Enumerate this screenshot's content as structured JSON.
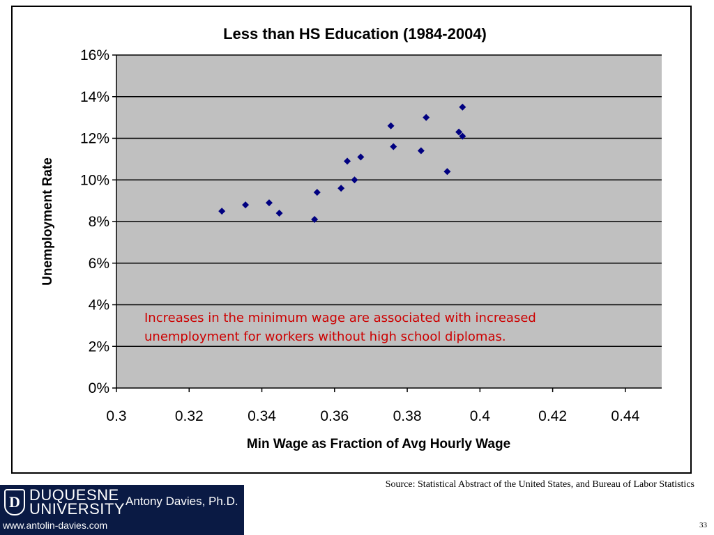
{
  "chart_data": {
    "type": "scatter",
    "title": "Less than HS Education (1984-2004)",
    "xlabel": "Min Wage as Fraction of Avg Hourly Wage",
    "ylabel": "Unemployment Rate",
    "xlim": [
      0.3,
      0.45
    ],
    "ylim": [
      0,
      16
    ],
    "x_ticks": [
      "0.3",
      "0.32",
      "0.34",
      "0.36",
      "0.38",
      "0.4",
      "0.42",
      "0.44"
    ],
    "x_tick_values": [
      0.3,
      0.32,
      0.34,
      0.36,
      0.38,
      0.4,
      0.42,
      0.44
    ],
    "y_ticks": [
      "0%",
      "2%",
      "4%",
      "6%",
      "8%",
      "10%",
      "12%",
      "14%",
      "16%"
    ],
    "y_tick_values": [
      0,
      2,
      4,
      6,
      8,
      10,
      12,
      14,
      16
    ],
    "grid": "horizontal",
    "plot_background": "#c0c0c0",
    "marker_color": "#000080",
    "marker": "diamond",
    "points": [
      {
        "x": 0.329,
        "y": 8.5
      },
      {
        "x": 0.3355,
        "y": 8.8
      },
      {
        "x": 0.342,
        "y": 8.9
      },
      {
        "x": 0.3448,
        "y": 8.4
      },
      {
        "x": 0.3545,
        "y": 8.1
      },
      {
        "x": 0.3552,
        "y": 9.4
      },
      {
        "x": 0.3618,
        "y": 9.6
      },
      {
        "x": 0.3635,
        "y": 10.9
      },
      {
        "x": 0.3655,
        "y": 10.0
      },
      {
        "x": 0.3672,
        "y": 11.1
      },
      {
        "x": 0.3755,
        "y": 12.6
      },
      {
        "x": 0.3762,
        "y": 11.6
      },
      {
        "x": 0.3838,
        "y": 11.4
      },
      {
        "x": 0.3852,
        "y": 13.0
      },
      {
        "x": 0.391,
        "y": 10.4
      },
      {
        "x": 0.3942,
        "y": 12.3
      },
      {
        "x": 0.3952,
        "y": 13.5
      },
      {
        "x": 0.3952,
        "y": 12.1
      }
    ],
    "annotation": [
      "Increases in the minimum wage are associated with increased",
      "unemployment for workers without high school diplomas."
    ],
    "annotation_color": "#cc0000"
  },
  "source": "Source: Statistical Abstract of the United States, and Bureau of Labor Statistics",
  "page_number": "33",
  "logo": {
    "name_line1": "DUQUESNE",
    "name_line2": "UNIVERSITY",
    "author": "Antony Davies, Ph.D.",
    "url": "www.antolin-davies.com",
    "emblem_letter": "D",
    "background": "#0a1a44"
  }
}
